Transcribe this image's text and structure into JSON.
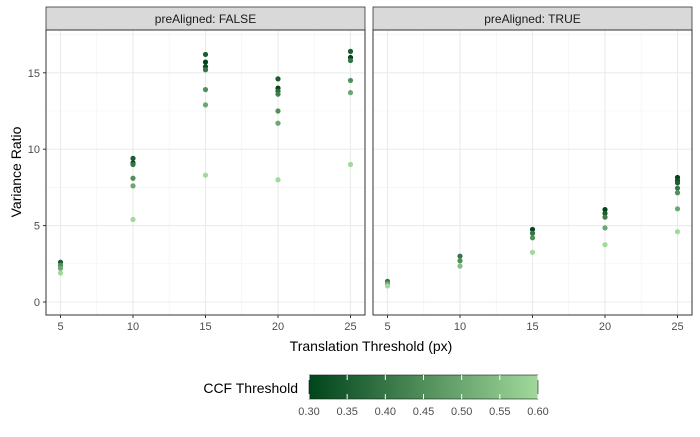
{
  "chart_data": {
    "type": "scatter",
    "xlabel": "Translation Threshold (px)",
    "ylabel": "Variance Ratio",
    "x_ticks": [
      5,
      10,
      15,
      20,
      25
    ],
    "y_ticks": [
      0,
      5,
      10,
      15
    ],
    "xlim": [
      4.0,
      26.0
    ],
    "ylim": [
      -0.85,
      17.8
    ],
    "grid": true,
    "legend": {
      "title": "CCF Threshold",
      "position": "bottom",
      "range": [
        0.3,
        0.6
      ],
      "ticks": [
        "0.30",
        "0.35",
        "0.40",
        "0.45",
        "0.50",
        "0.55",
        "0.60"
      ],
      "color_low": "#00441b",
      "color_high": "#a1d99b"
    },
    "panels": [
      {
        "strip": "preAligned: FALSE",
        "points": [
          {
            "x": 5,
            "y": 2.6,
            "ccf": 0.35
          },
          {
            "x": 5,
            "y": 2.4,
            "ccf": 0.45
          },
          {
            "x": 5,
            "y": 2.2,
            "ccf": 0.5
          },
          {
            "x": 5,
            "y": 1.9,
            "ccf": 0.6
          },
          {
            "x": 10,
            "y": 9.4,
            "ccf": 0.35
          },
          {
            "x": 10,
            "y": 9.1,
            "ccf": 0.3
          },
          {
            "x": 10,
            "y": 9.0,
            "ccf": 0.4
          },
          {
            "x": 10,
            "y": 8.1,
            "ccf": 0.45
          },
          {
            "x": 10,
            "y": 7.6,
            "ccf": 0.5
          },
          {
            "x": 10,
            "y": 5.4,
            "ccf": 0.6
          },
          {
            "x": 15,
            "y": 16.2,
            "ccf": 0.35
          },
          {
            "x": 15,
            "y": 15.7,
            "ccf": 0.3
          },
          {
            "x": 15,
            "y": 15.4,
            "ccf": 0.32
          },
          {
            "x": 15,
            "y": 15.2,
            "ccf": 0.4
          },
          {
            "x": 15,
            "y": 13.9,
            "ccf": 0.45
          },
          {
            "x": 15,
            "y": 12.9,
            "ccf": 0.5
          },
          {
            "x": 15,
            "y": 8.3,
            "ccf": 0.6
          },
          {
            "x": 20,
            "y": 14.6,
            "ccf": 0.35
          },
          {
            "x": 20,
            "y": 14.0,
            "ccf": 0.3
          },
          {
            "x": 20,
            "y": 13.8,
            "ccf": 0.38
          },
          {
            "x": 20,
            "y": 13.6,
            "ccf": 0.42
          },
          {
            "x": 20,
            "y": 12.5,
            "ccf": 0.45
          },
          {
            "x": 20,
            "y": 11.7,
            "ccf": 0.5
          },
          {
            "x": 20,
            "y": 8.0,
            "ccf": 0.6
          },
          {
            "x": 25,
            "y": 16.4,
            "ccf": 0.35
          },
          {
            "x": 25,
            "y": 16.0,
            "ccf": 0.3
          },
          {
            "x": 25,
            "y": 15.8,
            "ccf": 0.4
          },
          {
            "x": 25,
            "y": 14.5,
            "ccf": 0.45
          },
          {
            "x": 25,
            "y": 13.7,
            "ccf": 0.5
          },
          {
            "x": 25,
            "y": 9.0,
            "ccf": 0.6
          }
        ]
      },
      {
        "strip": "preAligned: TRUE",
        "points": [
          {
            "x": 5,
            "y": 1.35,
            "ccf": 0.4
          },
          {
            "x": 5,
            "y": 1.2,
            "ccf": 0.5
          },
          {
            "x": 5,
            "y": 1.05,
            "ccf": 0.6
          },
          {
            "x": 10,
            "y": 3.0,
            "ccf": 0.4
          },
          {
            "x": 10,
            "y": 2.7,
            "ccf": 0.45
          },
          {
            "x": 10,
            "y": 2.35,
            "ccf": 0.55
          },
          {
            "x": 15,
            "y": 4.75,
            "ccf": 0.3
          },
          {
            "x": 15,
            "y": 4.5,
            "ccf": 0.4
          },
          {
            "x": 15,
            "y": 4.2,
            "ccf": 0.45
          },
          {
            "x": 15,
            "y": 3.25,
            "ccf": 0.6
          },
          {
            "x": 20,
            "y": 6.05,
            "ccf": 0.3
          },
          {
            "x": 20,
            "y": 5.8,
            "ccf": 0.35
          },
          {
            "x": 20,
            "y": 5.55,
            "ccf": 0.42
          },
          {
            "x": 20,
            "y": 4.85,
            "ccf": 0.5
          },
          {
            "x": 20,
            "y": 3.75,
            "ccf": 0.6
          },
          {
            "x": 25,
            "y": 8.15,
            "ccf": 0.3
          },
          {
            "x": 25,
            "y": 7.95,
            "ccf": 0.32
          },
          {
            "x": 25,
            "y": 7.8,
            "ccf": 0.35
          },
          {
            "x": 25,
            "y": 7.45,
            "ccf": 0.4
          },
          {
            "x": 25,
            "y": 7.15,
            "ccf": 0.45
          },
          {
            "x": 25,
            "y": 6.1,
            "ccf": 0.5
          },
          {
            "x": 25,
            "y": 4.6,
            "ccf": 0.6
          }
        ]
      }
    ]
  }
}
